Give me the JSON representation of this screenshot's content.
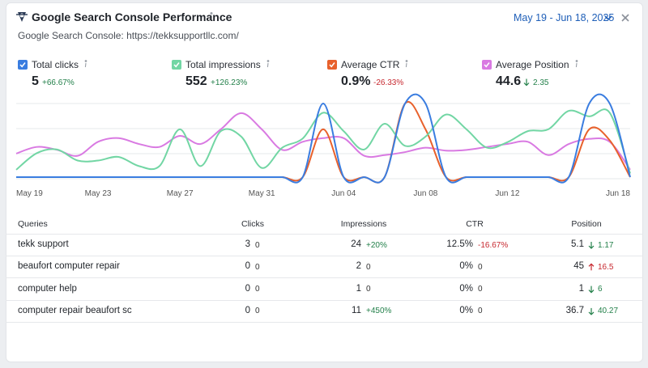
{
  "header": {
    "title": "Google Search Console Performance",
    "subtitle": "Google Search Console: https://tekksupportllc.com/",
    "date_range": "May 19 - Jun 18, 2025"
  },
  "metrics": [
    {
      "label": "Total clicks",
      "value": "5",
      "change": "+66.67%",
      "change_color": "#23804a"
    },
    {
      "label": "Total impressions",
      "value": "552",
      "change": "+126.23%",
      "change_color": "#23804a"
    },
    {
      "label": "Average CTR",
      "value": "0.9%",
      "change": "-26.33%",
      "change_color": "#c7282f"
    },
    {
      "label": "Average Position",
      "value": "44.6",
      "change": "2.35",
      "change_color": "#23804a",
      "arrow": "down"
    }
  ],
  "chart_data": {
    "type": "line",
    "categories": [
      "May 19",
      null,
      null,
      null,
      "May 23",
      null,
      null,
      null,
      "May 27",
      null,
      null,
      null,
      "May 31",
      null,
      null,
      null,
      "Jun 04",
      null,
      null,
      null,
      "Jun 08",
      null,
      null,
      null,
      "Jun 12",
      null,
      null,
      null,
      null,
      null,
      "Jun 18"
    ],
    "grid": true,
    "series": [
      {
        "name": "Total clicks",
        "color": "#3a7de0",
        "ylim": [
          0,
          1
        ],
        "values": [
          0,
          0,
          0,
          0,
          0,
          0,
          0,
          0,
          0,
          0,
          0,
          0,
          0,
          0,
          0,
          1,
          0,
          0,
          0,
          1,
          1,
          0,
          0,
          0,
          0,
          0,
          0,
          0,
          1,
          1,
          0
        ]
      },
      {
        "name": "Total impressions",
        "color": "#72d6a4",
        "ylim": [
          0,
          40
        ],
        "values": [
          4,
          13,
          15,
          9,
          9,
          11,
          6,
          6,
          26,
          6,
          25,
          22,
          5,
          16,
          21,
          35,
          25,
          15,
          29,
          17,
          22,
          34,
          26,
          16,
          19,
          25,
          26,
          36,
          33,
          35,
          2
        ]
      },
      {
        "name": "Average CTR",
        "color": "#e8612c",
        "ylim": [
          0,
          100
        ],
        "values": [
          0,
          0,
          0,
          0,
          0,
          0,
          0,
          0,
          0,
          0,
          0,
          0,
          0,
          0,
          0,
          65,
          0,
          0,
          0,
          100,
          65,
          0,
          0,
          0,
          0,
          0,
          0,
          0,
          65,
          50,
          0
        ]
      },
      {
        "name": "Average Position",
        "color": "#d97ae2",
        "ylim": [
          0,
          100
        ],
        "values": [
          32,
          41,
          37,
          29,
          48,
          53,
          45,
          41,
          56,
          45,
          65,
          87,
          65,
          37,
          48,
          53,
          53,
          29,
          30,
          34,
          40,
          36,
          37,
          41,
          45,
          48,
          30,
          45,
          52,
          48,
          10
        ]
      }
    ]
  },
  "table": {
    "columns": [
      "Queries",
      "Clicks",
      "Impressions",
      "CTR",
      "Position"
    ],
    "rows": [
      [
        "tekk support",
        {
          "value": 3,
          "change": 0
        },
        {
          "value": 24,
          "change": "+20%",
          "color": "#23804a"
        },
        {
          "value": "12.5%",
          "change": "-16.67%",
          "color": "#c7282f"
        },
        {
          "value": 5.1,
          "change": 1.17,
          "color": "#23804a",
          "arrow": "down"
        }
      ],
      [
        "beaufort computer repair",
        {
          "value": 0,
          "change": 0
        },
        {
          "value": 2,
          "change": 0
        },
        {
          "value": "0%",
          "change": 0
        },
        {
          "value": 45,
          "change": 16.5,
          "color": "#c7282f",
          "arrow": "up"
        }
      ],
      [
        "computer help",
        {
          "value": 0,
          "change": 0
        },
        {
          "value": 1,
          "change": 0
        },
        {
          "value": "0%",
          "change": 0
        },
        {
          "value": 1,
          "change": 6,
          "color": "#23804a",
          "arrow": "down"
        }
      ],
      [
        "computer repair beaufort sc",
        {
          "value": 0,
          "change": 0
        },
        {
          "value": 11,
          "change": "+450%",
          "color": "#23804a"
        },
        {
          "value": "0%",
          "change": 0
        },
        {
          "value": 36.7,
          "change": 40.27,
          "color": "#23804a",
          "arrow": "down"
        }
      ]
    ]
  }
}
